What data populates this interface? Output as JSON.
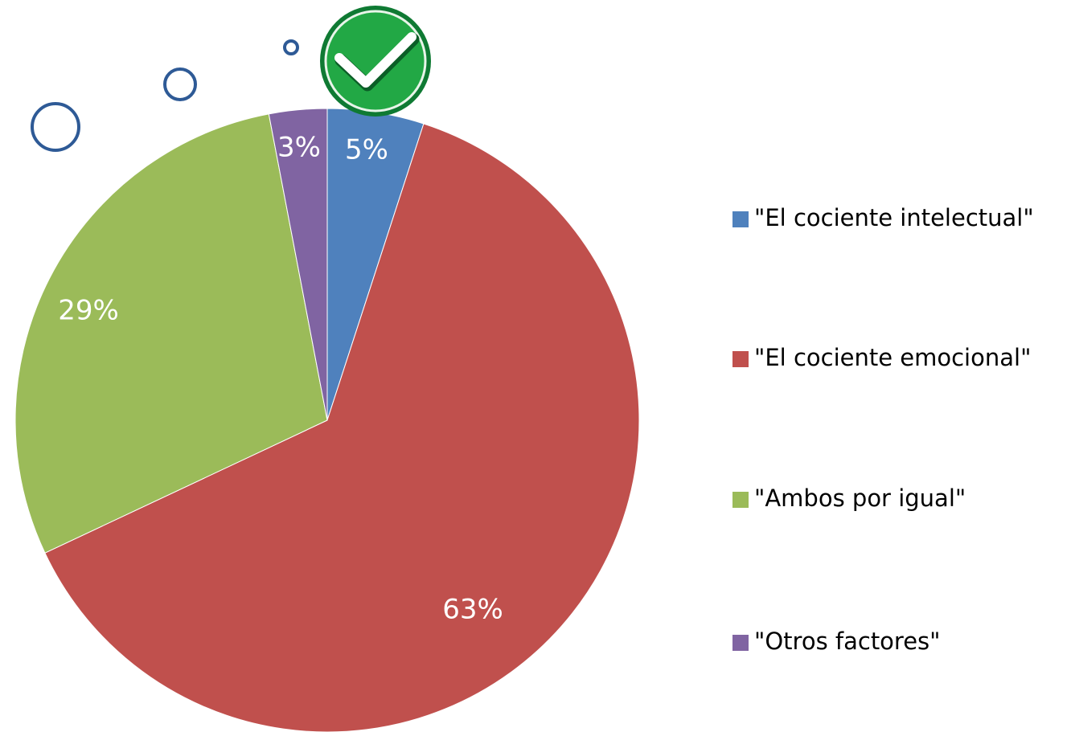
{
  "chart_data": {
    "type": "pie",
    "categories": [
      "\"El cociente intelectual\"",
      "\"El cociente emocional\"",
      "\"Ambos por igual\"",
      "\"Otros factores\""
    ],
    "values": [
      5,
      63,
      29,
      3
    ],
    "value_labels": [
      "5%",
      "63%",
      "29%",
      "3%"
    ],
    "colors": [
      "#4f81bd",
      "#c0504d",
      "#9bbb59",
      "#8064a2"
    ]
  }
}
